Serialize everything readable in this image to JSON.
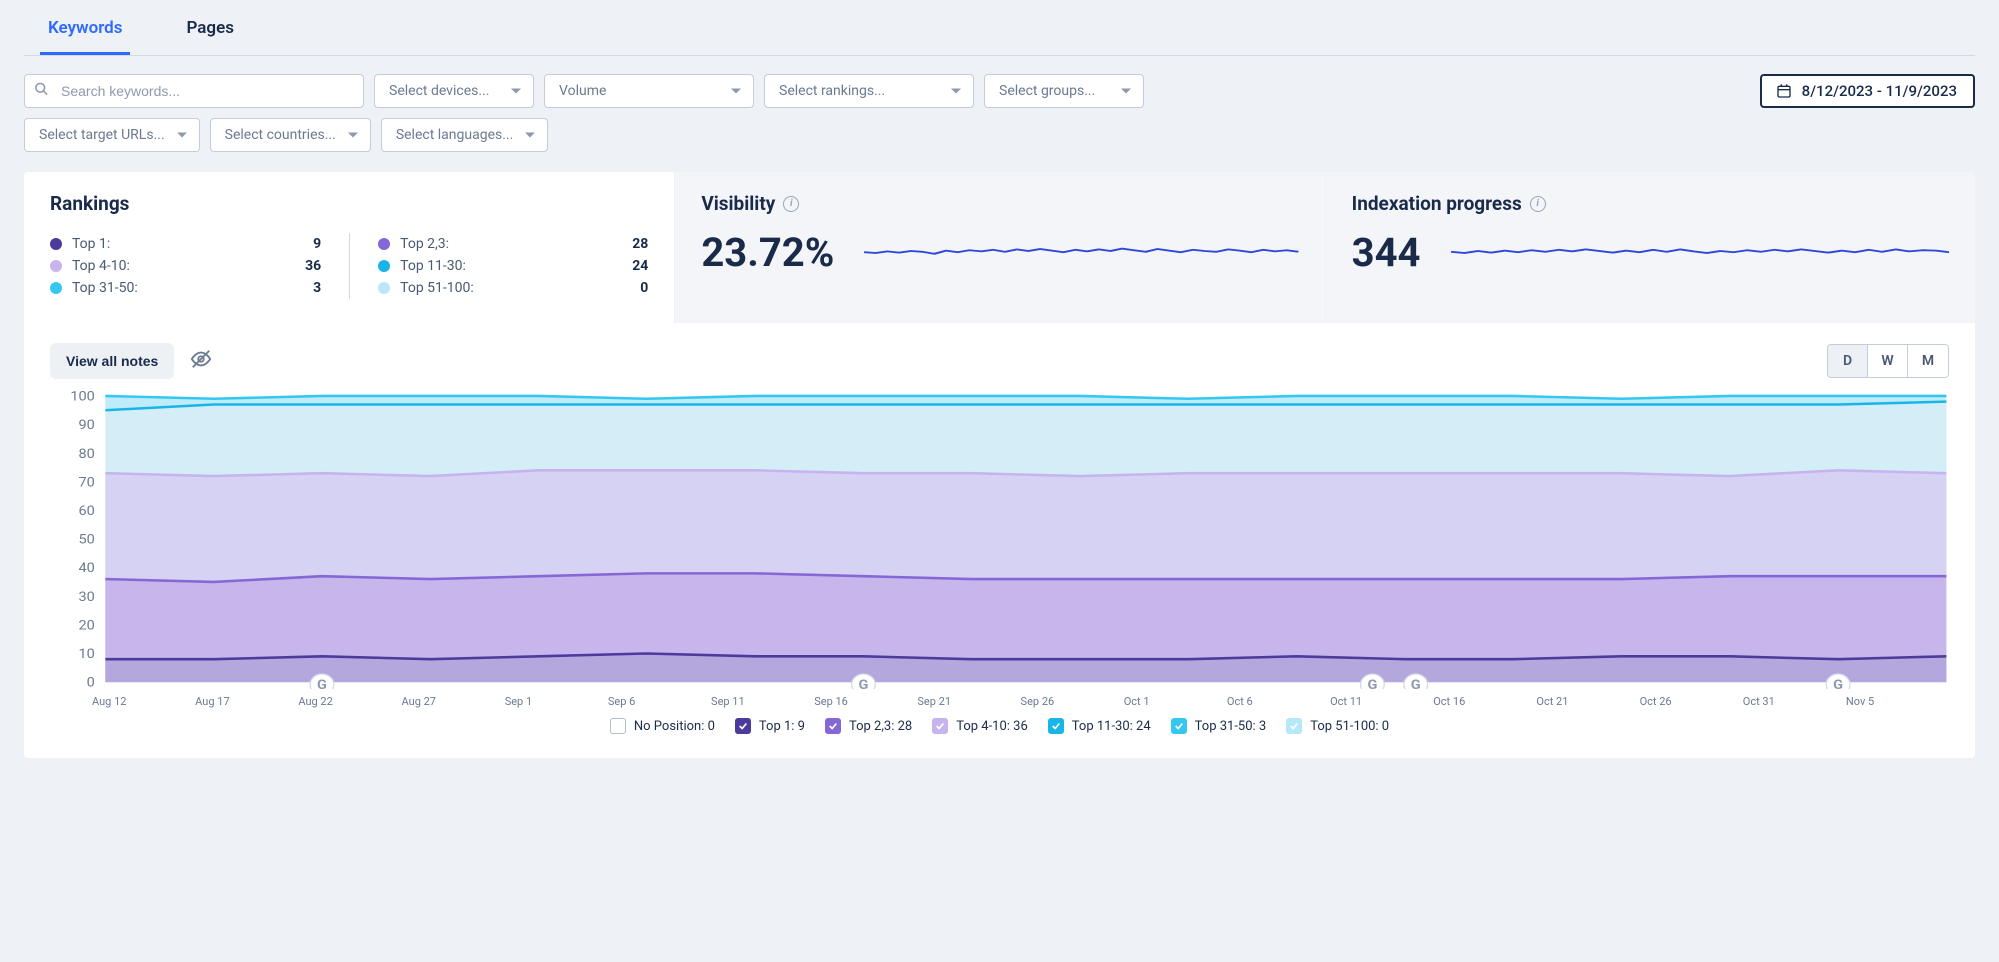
{
  "tabs": [
    {
      "label": "Keywords",
      "active": true
    },
    {
      "label": "Pages",
      "active": false
    }
  ],
  "filters": {
    "search_placeholder": "Search keywords...",
    "devices": "Select devices...",
    "volume": "Volume",
    "rankings": "Select rankings...",
    "groups": "Select groups...",
    "target_urls": "Select target URLs...",
    "countries": "Select countries...",
    "languages": "Select languages...",
    "date_range": "8/12/2023 - 11/9/2023"
  },
  "rankings_card": {
    "title": "Rankings",
    "rows": [
      {
        "label": "Top 1:",
        "value": "9",
        "color": "#4d3a9d"
      },
      {
        "label": "Top 2,3:",
        "value": "28",
        "color": "#8766d6"
      },
      {
        "label": "Top 4-10:",
        "value": "36",
        "color": "#c7b4ef"
      },
      {
        "label": "Top 11-30:",
        "value": "24",
        "color": "#19b5e8"
      },
      {
        "label": "Top 31-50:",
        "value": "3",
        "color": "#34c8f0"
      },
      {
        "label": "Top 51-100:",
        "value": "0",
        "color": "#b5e8f8"
      }
    ]
  },
  "visibility_card": {
    "title": "Visibility",
    "value": "23.72%",
    "spark": {
      "color": "#2d48d9",
      "ylim": [
        0,
        10
      ],
      "points": [
        5.2,
        5.0,
        5.4,
        5.1,
        5.5,
        5.3,
        4.8,
        5.6,
        5.2,
        5.7,
        5.4,
        5.8,
        5.3,
        5.9,
        5.5,
        6.0,
        5.6,
        5.2,
        5.8,
        5.4,
        5.9,
        5.5,
        6.1,
        5.7,
        5.3,
        6.0,
        5.6,
        5.2,
        5.8,
        5.5,
        5.3,
        5.9,
        5.6,
        5.2,
        5.8,
        5.4,
        5.7,
        5.3
      ]
    }
  },
  "indexation_card": {
    "title": "Indexation progress",
    "value": "344",
    "spark": {
      "color": "#2d48d9",
      "ylim": [
        0,
        10
      ],
      "points": [
        5.3,
        5.0,
        5.5,
        5.1,
        5.6,
        5.2,
        5.7,
        5.3,
        5.8,
        5.4,
        5.9,
        5.5,
        5.1,
        5.6,
        5.2,
        5.8,
        5.3,
        5.9,
        5.4,
        5.0,
        5.5,
        5.2,
        5.7,
        5.3,
        5.8,
        5.4,
        5.9,
        5.5,
        5.1,
        5.6,
        5.2,
        5.8,
        5.3,
        5.9,
        5.4,
        5.7,
        5.6,
        5.2
      ]
    }
  },
  "notes_button": "View all notes",
  "granularity": {
    "options": [
      "D",
      "W",
      "M"
    ],
    "active": "D"
  },
  "chart": {
    "type": "stacked-area",
    "ylim": [
      0,
      100
    ],
    "yticks": [
      0,
      10,
      20,
      30,
      40,
      50,
      60,
      70,
      80,
      90,
      100
    ],
    "x_labels": [
      "Aug 12",
      "Aug 17",
      "Aug 22",
      "Aug 27",
      "Sep 1",
      "Sep 6",
      "Sep 11",
      "Sep 16",
      "Sep 21",
      "Sep 26",
      "Oct 1",
      "Oct 6",
      "Oct 11",
      "Oct 16",
      "Oct 21",
      "Oct 26",
      "Oct 31",
      "Nov 5"
    ],
    "vert_lines": [
      2,
      7,
      12,
      16
    ],
    "g_markers": [
      2,
      7,
      11.7,
      12.1,
      16,
      17.3
    ],
    "background_fill": "#d7eef8",
    "series": [
      {
        "name": "Top 31-50",
        "fill": "#b5e8f8",
        "stroke": "#34c8f0",
        "data": [
          100,
          99,
          100,
          100,
          100,
          99,
          100,
          100,
          100,
          100,
          99,
          100,
          100,
          100,
          99,
          100,
          100,
          100
        ]
      },
      {
        "name": "Top 11-30",
        "fill": "#d7eef8",
        "stroke": "#19b5e8",
        "data": [
          95,
          97,
          97,
          97,
          97,
          97,
          97,
          97,
          97,
          97,
          97,
          97,
          97,
          97,
          97,
          97,
          97,
          98
        ]
      },
      {
        "name": "Top 4-10",
        "fill": "#d6cdf2",
        "stroke": "#c7b4ef",
        "data": [
          73,
          72,
          73,
          72,
          74,
          74,
          74,
          73,
          73,
          72,
          73,
          73,
          73,
          73,
          73,
          72,
          74,
          73
        ]
      },
      {
        "name": "Top 2,3",
        "fill": "#c3b2ea",
        "stroke": "#8766d6",
        "data": [
          36,
          35,
          37,
          36,
          37,
          38,
          38,
          37,
          36,
          36,
          36,
          36,
          36,
          36,
          36,
          37,
          37,
          37
        ]
      },
      {
        "name": "Top 1",
        "fill": "#b0a4dc",
        "stroke": "#4d3a9d",
        "data": [
          8,
          8,
          9,
          8,
          9,
          10,
          9,
          9,
          8,
          8,
          8,
          9,
          8,
          8,
          9,
          9,
          8,
          9
        ]
      }
    ]
  },
  "legend": [
    {
      "label": "No Position: 0",
      "style": "empty",
      "color": "#b0bccf"
    },
    {
      "label": "Top 1: 9",
      "style": "filled",
      "color": "#4d3a9d"
    },
    {
      "label": "Top 2,3: 28",
      "style": "filled",
      "color": "#8766d6"
    },
    {
      "label": "Top 4-10: 36",
      "style": "filled",
      "color": "#c7b4ef"
    },
    {
      "label": "Top 11-30: 24",
      "style": "filled",
      "color": "#19b5e8"
    },
    {
      "label": "Top 31-50: 3",
      "style": "filled",
      "color": "#34c8f0"
    },
    {
      "label": "Top 51-100: 0",
      "style": "filled",
      "color": "#b5e8f8"
    }
  ]
}
